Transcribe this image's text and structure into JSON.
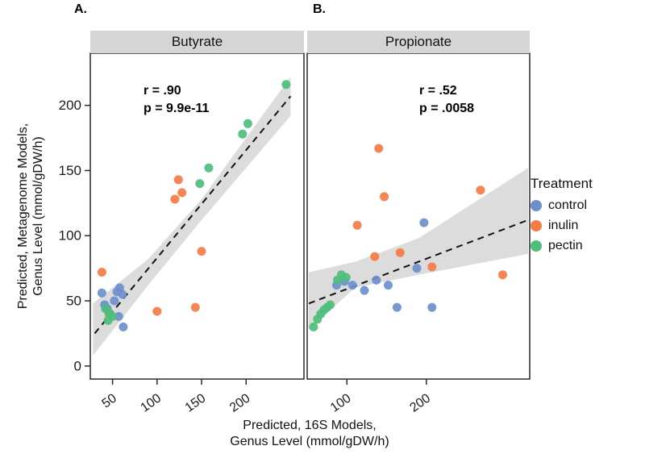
{
  "figure": {
    "panel_a_label": "A.",
    "panel_b_label": "B.",
    "x_axis_title_line1": "Predicted, 16S Models,",
    "x_axis_title_line2": "Genus Level (mmol/gDW/h)",
    "y_axis_title_line1": "Predicted, Metagenome Models,",
    "y_axis_title_line2": "Genus Level (mmol/gDW/h)"
  },
  "legend": {
    "title": "Treatment",
    "items": [
      {
        "label": "control",
        "color": "#6E8FCB"
      },
      {
        "label": "inulin",
        "color": "#F47C44"
      },
      {
        "label": "pectin",
        "color": "#4DBE7C"
      }
    ]
  },
  "chart_data": [
    {
      "type": "scatter",
      "title": "Butyrate",
      "annotation": {
        "r": "r = .90",
        "p": "p = 9.9e-11"
      },
      "xlabel": "Predicted, 16S Models, Genus Level (mmol/gDW/h)",
      "ylabel": "Predicted, Metagenome Models, Genus Level (mmol/gDW/h)",
      "xlim": [
        25,
        265
      ],
      "ylim": [
        -10,
        240
      ],
      "xticks": [
        50,
        100,
        150,
        200
      ],
      "yticks": [
        0,
        50,
        100,
        150,
        200
      ],
      "show_y_labels": true,
      "regression": {
        "x1": 30,
        "y1": 25,
        "x2": 250,
        "y2": 207
      },
      "band": [
        [
          28,
          48
        ],
        [
          90,
          82
        ],
        [
          150,
          128
        ],
        [
          250,
          222
        ],
        [
          250,
          192
        ],
        [
          150,
          112
        ],
        [
          90,
          62
        ],
        [
          28,
          8
        ]
      ],
      "series": [
        {
          "name": "control",
          "color": "#6E8FCB",
          "points": [
            [
              38,
              56
            ],
            [
              41,
              47
            ],
            [
              44,
              44
            ],
            [
              55,
              57
            ],
            [
              58,
              60
            ],
            [
              61,
              55
            ],
            [
              57,
              38
            ],
            [
              62,
              30
            ],
            [
              52,
              50
            ]
          ]
        },
        {
          "name": "inulin",
          "color": "#F47C44",
          "points": [
            [
              38,
              72
            ],
            [
              46,
              40
            ],
            [
              100,
              42
            ],
            [
              120,
              128
            ],
            [
              124,
              143
            ],
            [
              128,
              133
            ],
            [
              143,
              45
            ],
            [
              150,
              88
            ]
          ]
        },
        {
          "name": "pectin",
          "color": "#4DBE7C",
          "points": [
            [
              42,
              44
            ],
            [
              46,
              41
            ],
            [
              50,
              38
            ],
            [
              45,
              35
            ],
            [
              148,
              140
            ],
            [
              158,
              152
            ],
            [
              196,
              178
            ],
            [
              202,
              186
            ],
            [
              245,
              216
            ]
          ]
        }
      ]
    },
    {
      "type": "scatter",
      "title": "Propionate",
      "annotation": {
        "r": "r = .52",
        "p": "p = .0058"
      },
      "xlabel": "Predicted, 16S Models, Genus Level (mmol/gDW/h)",
      "ylabel": "Predicted, Metagenome Models, Genus Level (mmol/gDW/h)",
      "xlim": [
        50,
        330
      ],
      "ylim": [
        -10,
        240
      ],
      "xticks": [
        100,
        200
      ],
      "yticks": [
        0,
        50,
        100,
        150,
        200
      ],
      "show_y_labels": false,
      "regression": {
        "x1": 52,
        "y1": 48,
        "x2": 328,
        "y2": 112
      },
      "band": [
        [
          52,
          72
        ],
        [
          110,
          80
        ],
        [
          190,
          98
        ],
        [
          328,
          152
        ],
        [
          328,
          86
        ],
        [
          190,
          70
        ],
        [
          110,
          60
        ],
        [
          52,
          28
        ]
      ],
      "series": [
        {
          "name": "control",
          "color": "#6E8FCB",
          "points": [
            [
              87,
              62
            ],
            [
              97,
              65
            ],
            [
              107,
              62
            ],
            [
              122,
              58
            ],
            [
              137,
              66
            ],
            [
              152,
              62
            ],
            [
              163,
              45
            ],
            [
              188,
              75
            ],
            [
              197,
              110
            ],
            [
              207,
              45
            ]
          ]
        },
        {
          "name": "inulin",
          "color": "#F47C44",
          "points": [
            [
              113,
              108
            ],
            [
              135,
              84
            ],
            [
              140,
              167
            ],
            [
              147,
              130
            ],
            [
              167,
              87
            ],
            [
              207,
              76
            ],
            [
              268,
              135
            ],
            [
              296,
              70
            ]
          ]
        },
        {
          "name": "pectin",
          "color": "#4DBE7C",
          "points": [
            [
              58,
              30
            ],
            [
              63,
              36
            ],
            [
              67,
              40
            ],
            [
              71,
              43
            ],
            [
              75,
              45
            ],
            [
              79,
              47
            ],
            [
              88,
              66
            ],
            [
              93,
              70
            ],
            [
              99,
              68
            ]
          ]
        }
      ]
    }
  ]
}
